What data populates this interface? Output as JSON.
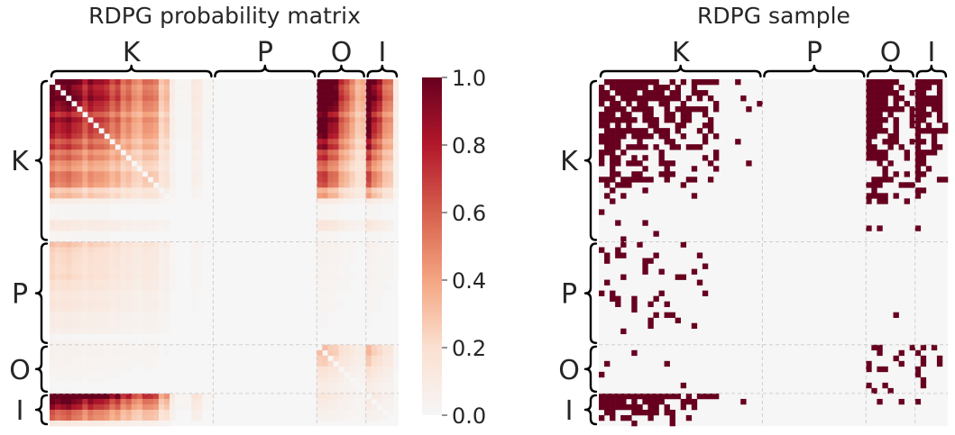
{
  "chart_data": [
    {
      "type": "heatmap",
      "title": "RDPG probability matrix",
      "blocks": [
        "K",
        "P",
        "O",
        "I"
      ],
      "block_fractions": [
        0.47,
        0.3,
        0.135,
        0.095
      ],
      "mean_probability_by_block": [
        [
          0.55,
          0.0,
          0.75,
          0.7
        ],
        [
          0.15,
          0.0,
          0.03,
          0.03
        ],
        [
          0.03,
          0.0,
          0.2,
          0.2
        ],
        [
          0.75,
          0.0,
          0.08,
          0.08
        ]
      ],
      "colorbar": {
        "min": 0.0,
        "max": 1.0,
        "ticks": [
          "0.0",
          "0.2",
          "0.4",
          "0.6",
          "0.8",
          "1.0"
        ]
      },
      "colors": {
        "low": "#f6f6f6",
        "mid": "#f4a582",
        "high": "#67001f"
      }
    },
    {
      "type": "heatmap",
      "title": "RDPG sample",
      "blocks": [
        "K",
        "P",
        "O",
        "I"
      ],
      "block_fractions": [
        0.47,
        0.3,
        0.135,
        0.095
      ],
      "edge_color": "#67001f",
      "background_color": "#f6f6f6"
    }
  ]
}
